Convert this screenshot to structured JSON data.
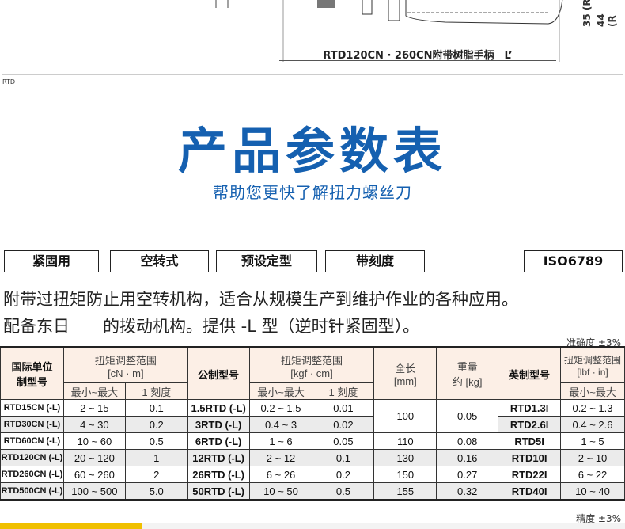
{
  "diagram": {
    "dimension_label": "RTD120CN · 260CN附带树脂手柄　L’",
    "side_labels": [
      "35 (R",
      "44 (R"
    ]
  },
  "caption": "RTD",
  "heading": {
    "title": "产品参数表",
    "subtitle": "帮助您更快了解扭力螺丝刀"
  },
  "tags": [
    "紧固用",
    "空转式",
    "预设定型",
    "带刻度",
    "ISO6789"
  ],
  "description": [
    "附带过扭矩防止用空转机构，适合从规模生产到维护作业的各种应用。",
    "配备东日　　的拨动机构。提供 -L 型（逆时针紧固型）。"
  ],
  "accuracy_top": "准确度 ±3%",
  "accuracy_bottom": "精度 ±3%",
  "table": {
    "headers": {
      "si_model": "国际单位制型号",
      "torque_cn": "扭矩调整范围\n[cN · m]",
      "metric_model": "公制型号",
      "torque_kgf": "扭矩调整范围\n[kgf · cm]",
      "length": "全长\n[mm]",
      "weight": "重量\n约 [kg]",
      "imperial_model": "英制型号",
      "torque_lbf": "扭矩调整范围\n[lbf · in]",
      "min_max": "最小~最大",
      "graduation": "1 刻度"
    },
    "rows": [
      {
        "si": "RTD15CN (-L)",
        "cn": "2 ~ 15",
        "cn_g": "0.1",
        "metric": "1.5RTD (-L)",
        "kgf": "0.2 ~ 1.5",
        "kgf_g": "0.01",
        "len": "100",
        "wt": "0.05",
        "imp": "RTD1.3I",
        "lbf": "0.2 ~ 1.3"
      },
      {
        "si": "RTD30CN (-L)",
        "cn": "4 ~ 30",
        "cn_g": "0.2",
        "metric": "3RTD (-L)",
        "kgf": "0.4 ~ 3",
        "kgf_g": "0.02",
        "imp": "RTD2.6I",
        "lbf": "0.4 ~ 2.6"
      },
      {
        "si": "RTD60CN (-L)",
        "cn": "10 ~ 60",
        "cn_g": "0.5",
        "metric": "6RTD (-L)",
        "kgf": "1 ~ 6",
        "kgf_g": "0.05",
        "len": "110",
        "wt": "0.08",
        "imp": "RTD5I",
        "lbf": "1 ~ 5"
      },
      {
        "si": "RTD120CN (-L)",
        "cn": "20 ~ 120",
        "cn_g": "1",
        "metric": "12RTD (-L)",
        "kgf": "2 ~ 12",
        "kgf_g": "0.1",
        "len": "130",
        "wt": "0.16",
        "imp": "RTD10I",
        "lbf": "2 ~ 10"
      },
      {
        "si": "RTD260CN (-L)",
        "cn": "60 ~ 260",
        "cn_g": "2",
        "metric": "26RTD (-L)",
        "kgf": "6 ~ 26",
        "kgf_g": "0.2",
        "len": "150",
        "wt": "0.27",
        "imp": "RTD22I",
        "lbf": "6 ~ 22"
      },
      {
        "si": "RTD500CN (-L)",
        "cn": "100 ~ 500",
        "cn_g": "5.0",
        "metric": "50RTD (-L)",
        "kgf": "10 ~ 50",
        "kgf_g": "0.5",
        "len": "155",
        "wt": "0.32",
        "imp": "RTD40I",
        "lbf": "10 ~ 40"
      }
    ]
  }
}
